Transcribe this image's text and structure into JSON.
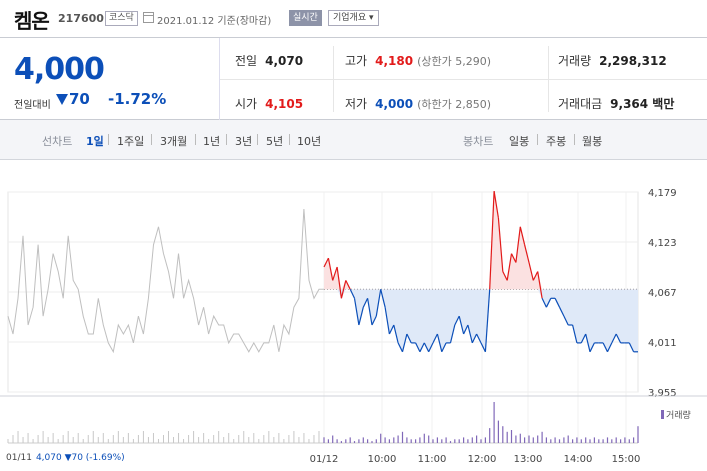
{
  "header": {
    "name": "켐온",
    "code": "217600",
    "market": "코스닥",
    "date": "2021.01.12 기준(장마감)",
    "realtime_label": "실시간",
    "company_label": "기업개요 ▾"
  },
  "price": {
    "current": "4,000",
    "compare_label": "전일대비",
    "change": "70",
    "change_pct": "-1.72%"
  },
  "stats": {
    "prev_label": "전일",
    "prev": "4,070",
    "high_label": "고가",
    "high": "4,180",
    "upper_label": "(상한가 5,290)",
    "volume_label": "거래량",
    "volume": "2,298,312",
    "open_label": "시가",
    "open": "4,105",
    "low_label": "저가",
    "low": "4,000",
    "lower_label": "(하한가 2,850)",
    "amount_label": "거래대금",
    "amount": "9,364 백만"
  },
  "tabs": {
    "line_caption": "선차트",
    "line": [
      "1일",
      "1주일",
      "3개월",
      "1년",
      "3년",
      "5년",
      "10년"
    ],
    "candle_caption": "봉차트",
    "candle": [
      "일봉",
      "주봉",
      "월봉"
    ]
  },
  "footer": {
    "date": "01/11",
    "quote": "4,070 ▼70 (-1.69%)"
  },
  "volume_label": "거래량",
  "colors": {
    "up": "#e21a1a",
    "down": "#0c4fb8",
    "prev_day": "#bfbfbf",
    "volume": "#8068b8"
  },
  "chart_data": {
    "type": "line",
    "ylim": [
      3955,
      4179
    ],
    "y_ticks": [
      "4,179",
      "4,123",
      "4,067",
      "4,011",
      "3,955"
    ],
    "x_ticks": [
      "01/12",
      "10:00",
      "11:00",
      "12:00",
      "13:00",
      "14:00",
      "15:00"
    ],
    "baseline": 4070,
    "prev_day": {
      "name": "01/11",
      "values": [
        4040,
        4020,
        4060,
        4130,
        4030,
        4050,
        4120,
        4040,
        4070,
        4110,
        4090,
        4060,
        4130,
        4080,
        4070,
        4040,
        4020,
        4020,
        4060,
        4030,
        4010,
        4000,
        4030,
        4020,
        4030,
        4010,
        4040,
        4020,
        4060,
        4120,
        4140,
        4110,
        4090,
        4060,
        4110,
        4060,
        4080,
        4060,
        4030,
        4050,
        4020,
        4040,
        4030,
        4030,
        4010,
        4020,
        4020,
        4010,
        4000,
        4010,
        4000,
        4010,
        4010,
        4030,
        4000,
        4030,
        4020,
        4050,
        4060,
        4160,
        4080,
        4060,
        4070,
        4070
      ]
    },
    "today": {
      "name": "01/12",
      "values": [
        4095,
        4105,
        4080,
        4095,
        4060,
        4080,
        4070,
        4060,
        4030,
        4050,
        4060,
        4030,
        4040,
        4070,
        4050,
        4020,
        4030,
        4010,
        4000,
        4020,
        4010,
        4010,
        4000,
        4010,
        4000,
        4010,
        4020,
        4000,
        4010,
        4010,
        4030,
        4040,
        4020,
        4030,
        4010,
        4020,
        4010,
        4000,
        4070,
        4180,
        4150,
        4090,
        4080,
        4110,
        4100,
        4140,
        4120,
        4100,
        4080,
        4090,
        4060,
        4050,
        4060,
        4060,
        4050,
        4040,
        4030,
        4030,
        4010,
        4010,
        4020,
        4000,
        4010,
        4010,
        4010,
        4000,
        4010,
        4020,
        4010,
        4010,
        4010,
        4000,
        4000
      ]
    },
    "volume": [
      3,
      2,
      4,
      2,
      1,
      2,
      3,
      1,
      2,
      3,
      2,
      1,
      2,
      5,
      3,
      2,
      3,
      4,
      6,
      3,
      2,
      2,
      3,
      5,
      4,
      2,
      3,
      2,
      3,
      1,
      2,
      2,
      3,
      2,
      3,
      4,
      2,
      3,
      8,
      22,
      12,
      9,
      6,
      7,
      4,
      5,
      3,
      4,
      3,
      4,
      6,
      3,
      2,
      3,
      2,
      3,
      4,
      2,
      3,
      2,
      3,
      2,
      3,
      2,
      2,
      3,
      2,
      3,
      2,
      3,
      2,
      3,
      9
    ]
  }
}
